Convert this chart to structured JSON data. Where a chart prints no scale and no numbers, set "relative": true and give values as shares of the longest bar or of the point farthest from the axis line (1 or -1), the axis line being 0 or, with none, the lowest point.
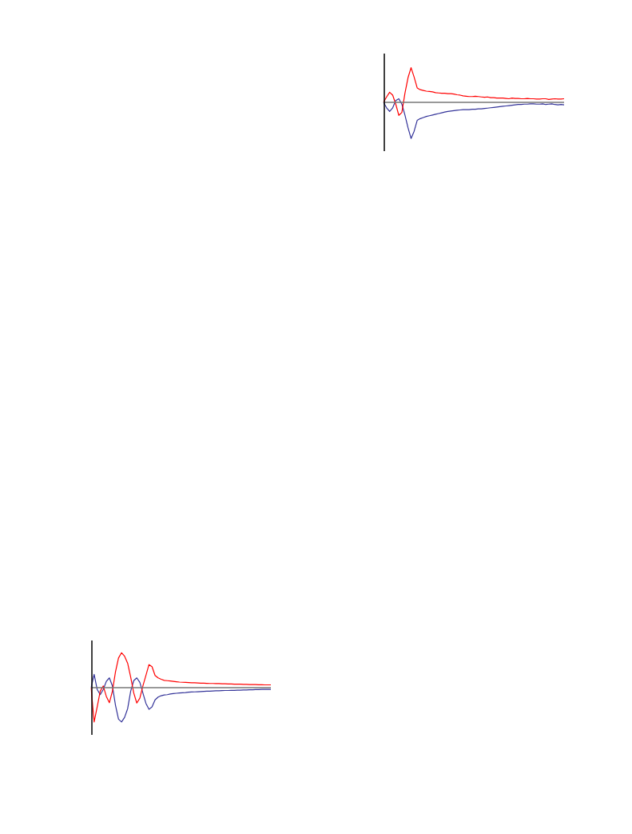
{
  "chart_data": [
    {
      "type": "line",
      "relative": true,
      "categories": [
        null,
        null,
        null,
        null,
        null,
        null,
        null,
        null,
        null,
        null,
        null,
        null,
        null,
        null,
        null,
        null,
        null,
        null,
        null,
        null,
        null,
        null,
        null,
        null,
        null,
        null,
        null,
        null,
        null,
        null,
        null,
        null,
        null,
        null,
        null,
        null,
        null,
        null,
        null,
        null,
        null,
        null,
        null,
        null,
        null,
        null,
        null,
        null,
        null,
        null,
        null,
        null,
        null,
        null,
        null,
        null,
        null,
        null,
        null,
        null
      ],
      "series": [
        {
          "color": "#ff0000",
          "values": [
            0,
            0.15,
            0.28,
            0.2,
            -0.05,
            -0.36,
            -0.28,
            0.25,
            0.68,
            0.96,
            0.7,
            0.4,
            0.35,
            0.33,
            0.31,
            0.3,
            0.29,
            0.27,
            0.26,
            0.25,
            0.25,
            0.24,
            0.24,
            0.23,
            0.21,
            0.2,
            0.18,
            0.17,
            0.16,
            0.16,
            0.17,
            0.16,
            0.15,
            0.14,
            0.15,
            0.13,
            0.13,
            0.12,
            0.12,
            0.12,
            0.11,
            0.1,
            0.12,
            0.11,
            0.11,
            0.1,
            0.1,
            0.11,
            0.1,
            0.1,
            0.09,
            0.09,
            0.1,
            0.1,
            0.08,
            0.09,
            0.1,
            0.09,
            0.09,
            0.1
          ]
        },
        {
          "color": "#333399",
          "values": [
            0,
            -0.15,
            -0.25,
            -0.15,
            0.05,
            0.1,
            -0.05,
            -0.35,
            -0.7,
            -1,
            -0.8,
            -0.5,
            -0.45,
            -0.42,
            -0.39,
            -0.37,
            -0.35,
            -0.33,
            -0.31,
            -0.29,
            -0.27,
            -0.25,
            -0.24,
            -0.23,
            -0.22,
            -0.21,
            -0.2,
            -0.2,
            -0.2,
            -0.19,
            -0.19,
            -0.18,
            -0.18,
            -0.17,
            -0.16,
            -0.15,
            -0.14,
            -0.13,
            -0.12,
            -0.11,
            -0.1,
            -0.09,
            -0.08,
            -0.07,
            -0.06,
            -0.06,
            -0.05,
            -0.05,
            -0.04,
            -0.04,
            -0.05,
            -0.05,
            -0.04,
            -0.06,
            -0.05,
            -0.04,
            -0.06,
            -0.07,
            -0.06,
            -0.07
          ]
        }
      ]
    },
    {
      "type": "line",
      "relative": true,
      "categories": [
        null,
        null,
        null,
        null,
        null,
        null,
        null,
        null,
        null,
        null,
        null,
        null,
        null,
        null,
        null,
        null,
        null,
        null,
        null,
        null,
        null,
        null,
        null,
        null,
        null,
        null,
        null,
        null,
        null,
        null,
        null,
        null,
        null,
        null,
        null,
        null,
        null,
        null,
        null,
        null,
        null,
        null,
        null,
        null,
        null,
        null,
        null,
        null,
        null,
        null,
        null,
        null,
        null,
        null,
        null,
        null,
        null,
        null,
        null,
        null
      ],
      "series": [
        {
          "color": "#ff0000",
          "values": [
            0,
            -0.98,
            -0.55,
            -0.1,
            0.05,
            -0.25,
            -0.43,
            -0.1,
            0.45,
            0.85,
            1,
            0.9,
            0.7,
            0.3,
            -0.15,
            -0.44,
            -0.3,
            0.05,
            0.35,
            0.66,
            0.6,
            0.35,
            0.28,
            0.24,
            0.21,
            0.2,
            0.19,
            0.18,
            0.17,
            0.16,
            0.155,
            0.15,
            0.145,
            0.14,
            0.14,
            0.135,
            0.13,
            0.13,
            0.125,
            0.12,
            0.12,
            0.115,
            0.115,
            0.11,
            0.11,
            0.105,
            0.105,
            0.1,
            0.1,
            0.1,
            0.095,
            0.095,
            0.09,
            0.09,
            0.09,
            0.085,
            0.085,
            0.08,
            0.08,
            0.08
          ]
        },
        {
          "color": "#333399",
          "values": [
            0,
            0.38,
            -0.05,
            -0.2,
            -0.05,
            0.18,
            0.28,
            0.05,
            -0.5,
            -0.9,
            -0.98,
            -0.85,
            -0.6,
            -0.1,
            0.2,
            0.28,
            0.15,
            -0.15,
            -0.45,
            -0.62,
            -0.55,
            -0.35,
            -0.27,
            -0.23,
            -0.21,
            -0.2,
            -0.18,
            -0.17,
            -0.16,
            -0.15,
            -0.145,
            -0.14,
            -0.13,
            -0.125,
            -0.12,
            -0.115,
            -0.11,
            -0.105,
            -0.1,
            -0.1,
            -0.095,
            -0.09,
            -0.09,
            -0.085,
            -0.08,
            -0.08,
            -0.075,
            -0.075,
            -0.07,
            -0.07,
            -0.065,
            -0.065,
            -0.06,
            -0.06,
            -0.055,
            -0.055,
            -0.05,
            -0.05,
            -0.05,
            -0.05
          ]
        }
      ]
    }
  ]
}
